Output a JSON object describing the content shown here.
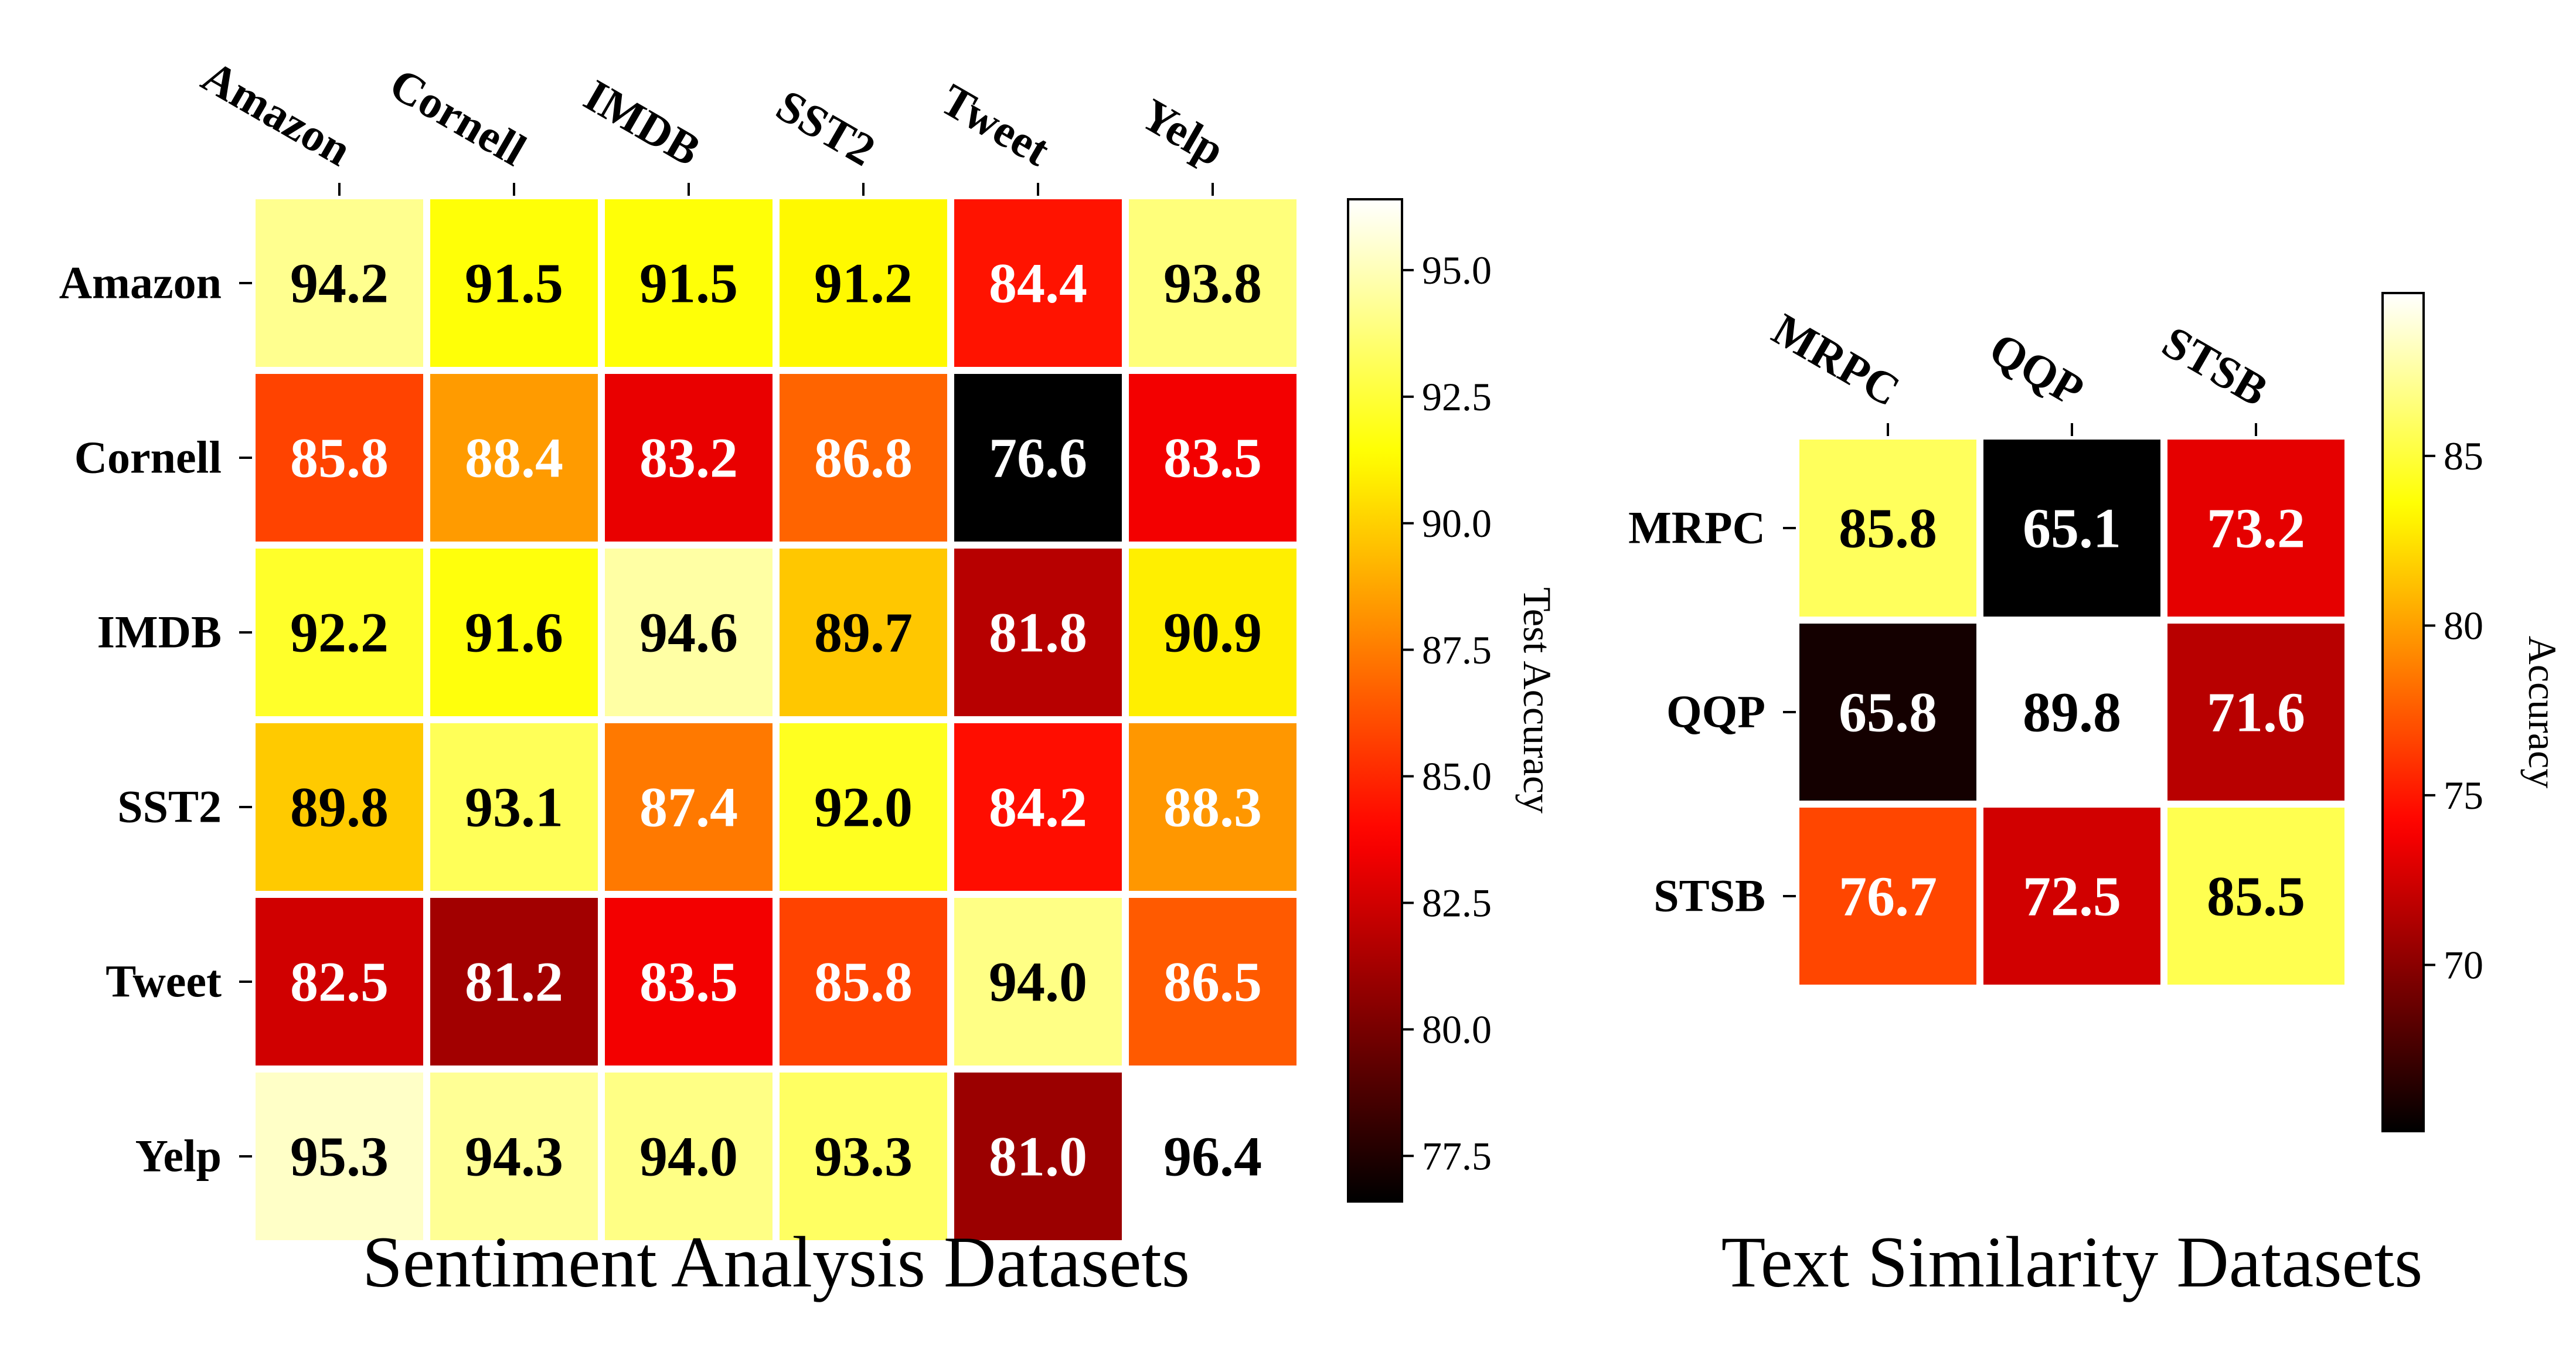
{
  "chart_data": [
    {
      "type": "heatmap",
      "title": "Sentiment Analysis Datasets",
      "x_labels": [
        "Amazon",
        "Cornell",
        "IMDB",
        "SST2",
        "Tweet",
        "Yelp"
      ],
      "y_labels": [
        "Amazon",
        "Cornell",
        "IMDB",
        "SST2",
        "Tweet",
        "Yelp"
      ],
      "values": [
        [
          "94.2",
          "91.5",
          "91.5",
          "91.2",
          "84.4",
          "93.8"
        ],
        [
          "85.8",
          "88.4",
          "83.2",
          "86.8",
          "76.6",
          "83.5"
        ],
        [
          "92.2",
          "91.6",
          "94.6",
          "89.7",
          "81.8",
          "90.9"
        ],
        [
          "89.8",
          "93.1",
          "87.4",
          "92.0",
          "84.2",
          "88.3"
        ],
        [
          "82.5",
          "81.2",
          "83.5",
          "85.8",
          "94.0",
          "86.5"
        ],
        [
          "95.3",
          "94.3",
          "94.0",
          "93.3",
          "81.0",
          "96.4"
        ]
      ],
      "colormap": "hot",
      "colorbar": {
        "label": "Test Accuracy",
        "min": 76.6,
        "max": 96.4,
        "ticks": [
          "77.5",
          "80.0",
          "82.5",
          "85.0",
          "87.5",
          "90.0",
          "92.5",
          "95.0"
        ]
      }
    },
    {
      "type": "heatmap",
      "title": "Text Similarity Datasets",
      "x_labels": [
        "MRPC",
        "QQP",
        "STSB"
      ],
      "y_labels": [
        "MRPC",
        "QQP",
        "STSB"
      ],
      "values": [
        [
          "85.8",
          "65.1",
          "73.2"
        ],
        [
          "65.8",
          "89.8",
          "71.6"
        ],
        [
          "76.7",
          "72.5",
          "85.5"
        ]
      ],
      "colormap": "hot",
      "colorbar": {
        "label": "Accuracy",
        "min": 65.1,
        "max": 89.8,
        "ticks": [
          "70",
          "75",
          "80",
          "85"
        ]
      }
    }
  ]
}
